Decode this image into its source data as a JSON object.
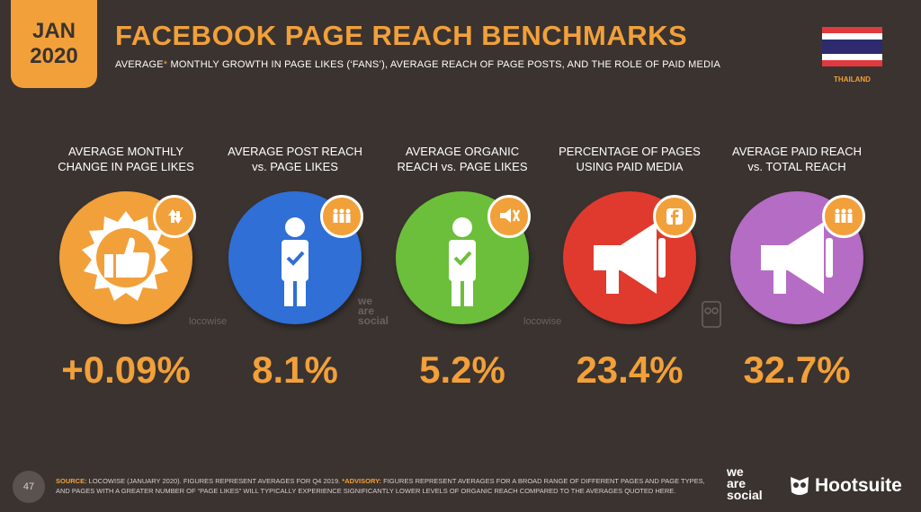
{
  "header": {
    "date_month": "JAN",
    "date_year": "2020",
    "title": "FACEBOOK PAGE REACH BENCHMARKS",
    "subtitle_pre": "AVERAGE",
    "subtitle_ast": "*",
    "subtitle_post": " MONTHLY GROWTH IN PAGE LIKES (‘FANS’), AVERAGE REACH OF PAGE POSTS, AND THE ROLE OF PAID MEDIA",
    "country": "THAILAND"
  },
  "metrics": [
    {
      "label_line1": "AVERAGE MONTHLY",
      "label_line2": "CHANGE IN PAGE LIKES",
      "value": "+0.09%",
      "color": "#f2a03a",
      "icon": "thumbs-up-icon",
      "badge_icon": "up-down-arrows-icon"
    },
    {
      "label_line1": "AVERAGE POST REACH",
      "label_line2": "vs. PAGE LIKES",
      "value": "8.1%",
      "color": "#2f6fd6",
      "icon": "person-check-icon",
      "badge_icon": "group-icon"
    },
    {
      "label_line1": "AVERAGE ORGANIC",
      "label_line2": "REACH vs. PAGE LIKES",
      "value": "5.2%",
      "color": "#6cbf3a",
      "icon": "person-check-icon",
      "badge_icon": "megaphone-crossed-icon"
    },
    {
      "label_line1": "PERCENTAGE OF PAGES",
      "label_line2": "USING PAID MEDIA",
      "value": "23.4%",
      "color": "#e03a2e",
      "icon": "megaphone-icon",
      "badge_icon": "facebook-icon"
    },
    {
      "label_line1": "AVERAGE PAID REACH",
      "label_line2": "vs. TOTAL REACH",
      "value": "32.7%",
      "color": "#b56cc4",
      "icon": "megaphone-icon",
      "badge_icon": "group-icon"
    }
  ],
  "watermarks": {
    "locowise": "locowise",
    "wearesocial_1": "we",
    "wearesocial_2": "are",
    "wearesocial_3": "social"
  },
  "footer": {
    "page_number": "47",
    "source_key": "SOURCE:",
    "source_text": " LOCOWISE (JANUARY 2020). FIGURES REPRESENT AVERAGES FOR Q4 2019. ",
    "advisory_key": "*ADVISORY:",
    "advisory_text": " FIGURES REPRESENT AVERAGES FOR A BROAD RANGE OF DIFFERENT PAGES AND PAGE TYPES, AND PAGES WITH A GREATER NUMBER OF “PAGE LIKES” WILL TYPICALLY EXPERIENCE SIGNIFICANTLY LOWER LEVELS OF ORGANIC REACH COMPARED TO THE AVERAGES QUOTED HERE.",
    "brand_we": "we",
    "brand_are": "are",
    "brand_social": "social",
    "brand_hootsuite": "Hootsuite"
  }
}
